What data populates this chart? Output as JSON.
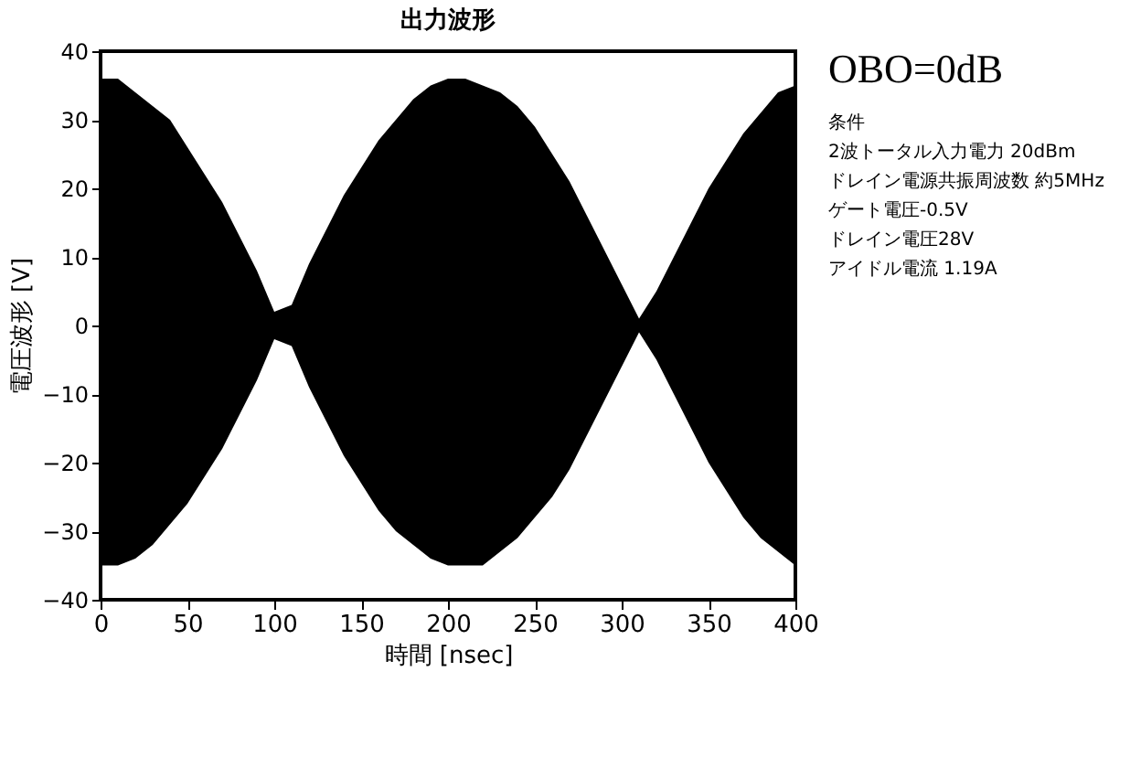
{
  "chart_data": {
    "type": "area",
    "title": "出力波形",
    "xlabel": "時間 [nsec]",
    "ylabel": "電圧波形 [V]",
    "annotations": [
      "OBO=0dB",
      "条件",
      "2波トータル入力電力 20dBm",
      "ドレイン電源共振周波数 約5MHz",
      "ゲート電圧-0.5V",
      "ドレイン電圧28V",
      "アイドル電流 1.19A"
    ],
    "x": [
      0,
      10,
      20,
      30,
      40,
      50,
      60,
      70,
      80,
      90,
      100,
      110,
      120,
      130,
      140,
      150,
      160,
      170,
      180,
      190,
      200,
      210,
      220,
      230,
      240,
      250,
      260,
      270,
      280,
      290,
      300,
      310,
      320,
      330,
      340,
      350,
      360,
      370,
      380,
      390,
      400
    ],
    "series": [
      {
        "color": "#000000",
        "values": [
          36,
          36,
          34,
          32,
          30,
          26,
          22,
          18,
          13,
          8,
          2,
          3,
          9,
          14,
          19,
          23,
          27,
          30,
          33,
          35,
          36,
          36,
          35,
          34,
          32,
          29,
          25,
          21,
          16,
          11,
          6,
          1,
          5,
          10,
          15,
          20,
          24,
          28,
          31,
          34,
          35
        ]
      },
      {
        "color": "#000000",
        "values": [
          -35,
          -35,
          -34,
          -32,
          -29,
          -26,
          -22,
          -18,
          -13,
          -8,
          -2,
          -3,
          -9,
          -14,
          -19,
          -23,
          -27,
          -30,
          -32,
          -34,
          -35,
          -35,
          -35,
          -33,
          -31,
          -28,
          -25,
          -21,
          -16,
          -11,
          -6,
          -1,
          -5,
          -10,
          -15,
          -20,
          -24,
          -28,
          -31,
          -33,
          -35
        ]
      }
    ],
    "xlim": [
      0,
      400
    ],
    "xticks": [
      0,
      50,
      100,
      150,
      200,
      250,
      300,
      350,
      400
    ],
    "ylim": [
      -40,
      40
    ],
    "yticks": [
      -40,
      -30,
      -20,
      -10,
      0,
      10,
      20,
      30,
      40
    ],
    "grid": false
  }
}
